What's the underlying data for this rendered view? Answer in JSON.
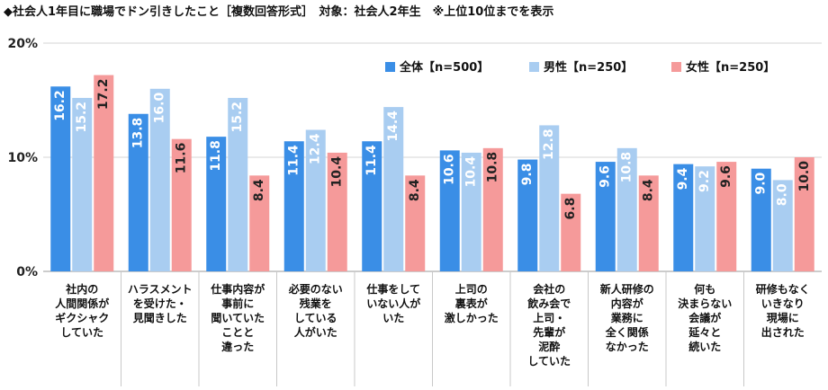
{
  "chart_data": {
    "type": "bar",
    "title": "◆社会人1年目に職場でドン引きしたこと［複数回答形式］　対象：社会人2年生　※上位10位までを表示",
    "ylim": [
      0,
      20
    ],
    "yticks": [
      "0%",
      "10%",
      "20%"
    ],
    "grid": true,
    "legend_position": "top-right",
    "categories": [
      [
        "社内の",
        "人間関係が",
        "ギクシャク",
        "していた"
      ],
      [
        "ハラスメント",
        "を受けた・",
        "見聞きした"
      ],
      [
        "仕事内容が",
        "事前に",
        "聞いていた",
        "ことと",
        "違った"
      ],
      [
        "必要のない",
        "残業を",
        "している",
        "人がいた"
      ],
      [
        "仕事をして",
        "いない人が",
        "いた"
      ],
      [
        "上司の",
        "裏表が",
        "激しかった"
      ],
      [
        "会社の",
        "飲み会で",
        "上司・",
        "先輩が",
        "泥酔",
        "していた"
      ],
      [
        "新人研修の",
        "内容が",
        "業務に",
        "全く関係",
        "なかった"
      ],
      [
        "何も",
        "決まらない",
        "会議が",
        "延々と",
        "続いた"
      ],
      [
        "研修もなく",
        "いきなり",
        "現場に",
        "出された"
      ]
    ],
    "series": [
      {
        "name": "全体【n=500】",
        "color": "#3a8ee6",
        "values": [
          16.2,
          13.8,
          11.8,
          11.4,
          11.4,
          10.6,
          9.8,
          9.6,
          9.4,
          9.0
        ]
      },
      {
        "name": "男性【n=250】",
        "color": "#a9cdf1",
        "values": [
          15.2,
          16.0,
          15.2,
          12.4,
          14.4,
          10.4,
          12.8,
          10.8,
          9.2,
          8.0
        ]
      },
      {
        "name": "女性【n=250】",
        "color": "#f59a9a",
        "values": [
          17.2,
          11.6,
          8.4,
          10.4,
          8.4,
          10.8,
          6.8,
          8.4,
          9.6,
          10.0
        ]
      }
    ],
    "value_label_colors": [
      "#ffffff",
      "#ffffff",
      "#222222"
    ]
  }
}
